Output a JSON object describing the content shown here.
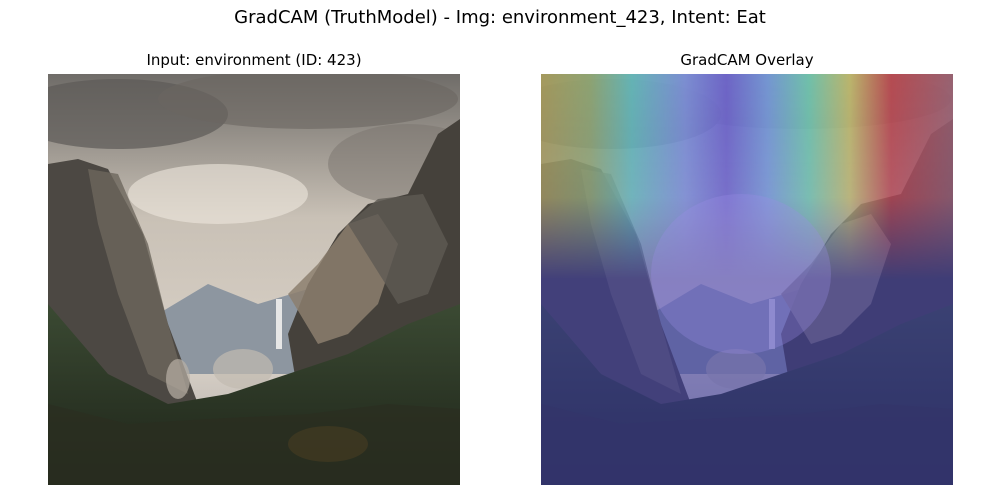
{
  "figure": {
    "title": "GradCAM (TruthModel) - Img: environment_423, Intent: Eat"
  },
  "panels": [
    {
      "title": "Input: environment (ID: 423)"
    },
    {
      "title": "GradCAM Overlay"
    }
  ]
}
